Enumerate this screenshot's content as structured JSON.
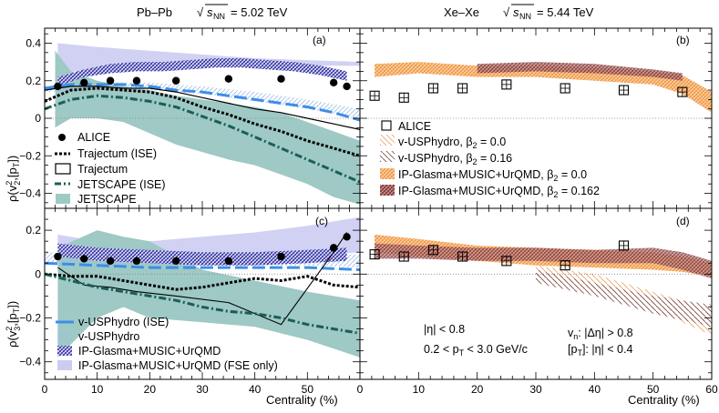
{
  "chart_data": {
    "type": "line",
    "header": {
      "left": {
        "system": "Pb–Pb",
        "energy_var": "s",
        "energy_sub": "NN",
        "energy_value": "= 5.02 TeV"
      },
      "right": {
        "system": "Xe–Xe",
        "energy_var": "s",
        "energy_sub": "NN",
        "energy_value": "= 5.44 TeV"
      }
    },
    "xlabel": "Centrality (%)",
    "xlim": [
      0,
      60
    ],
    "x_ticks": [
      "0",
      "10",
      "20",
      "30",
      "40",
      "50",
      "60"
    ],
    "x_ticks_last_panel": [
      "0",
      "10",
      "20",
      "30",
      "40",
      "50",
      "60"
    ],
    "ylabel_top": {
      "pre": "ρ(v",
      "sup": "2",
      "sub": "2",
      "mid": ",[p",
      "sub2": "T",
      "post": "])"
    },
    "ylabel_bottom": {
      "pre": "ρ(v",
      "sup": "2",
      "sub": "3",
      "mid": ",[p",
      "sub2": "T",
      "post": "])"
    },
    "ylim_top": [
      -0.48,
      0.48
    ],
    "ylim_bottom": [
      -0.48,
      0.3
    ],
    "y_ticks_top": [
      "−0.4",
      "−0.2",
      "0",
      "0.2",
      "0.4"
    ],
    "y_ticks_bottom": [
      "−0.4",
      "−0.2",
      "0",
      "0.2"
    ],
    "panel_labels": [
      "(a)",
      "(b)",
      "(c)",
      "(d)"
    ],
    "colors": {
      "alice": "#000000",
      "trajectum": "#000000",
      "jetscape_ise": "#1b5e57",
      "jetscape_band": "#9ec9c4",
      "vusp_ise": "#3d8ee8",
      "vusp_hatch": "#a9c7ee",
      "ipglasma_hatch": "#3333aa",
      "ipglasma_fse": "#ccccf2",
      "xe_beta0": "#f5a65b",
      "xe_beta016": "#a35b5b"
    },
    "panels": {
      "a": {
        "alice": {
          "x": [
            2.5,
            7.5,
            12.5,
            17.5,
            25,
            35,
            45,
            55,
            57.5
          ],
          "y": [
            0.17,
            0.19,
            0.2,
            0.2,
            0.2,
            0.21,
            0.21,
            0.19,
            0.17
          ]
        },
        "trajectum_ise": {
          "x": [
            0,
            5,
            10,
            15,
            20,
            25,
            30,
            35,
            40,
            45,
            50,
            55,
            60
          ],
          "y": [
            0.09,
            0.15,
            0.16,
            0.15,
            0.14,
            0.11,
            0.06,
            0.02,
            -0.03,
            -0.07,
            -0.12,
            -0.16,
            -0.2
          ]
        },
        "trajectum": {
          "x": [
            0,
            5,
            10,
            15,
            20,
            25,
            30,
            35,
            40,
            45,
            50,
            55,
            60
          ],
          "y": [
            0.15,
            0.17,
            0.17,
            0.16,
            0.16,
            0.14,
            0.11,
            0.08,
            0.05,
            0.03,
            0.0,
            -0.03,
            -0.06
          ]
        },
        "jetscape_ise": {
          "x": [
            0,
            5,
            10,
            15,
            20,
            25,
            30,
            35,
            40,
            45,
            50,
            55,
            60
          ],
          "y": [
            0.05,
            0.1,
            0.12,
            0.11,
            0.09,
            0.06,
            0.01,
            -0.04,
            -0.1,
            -0.16,
            -0.22,
            -0.28,
            -0.34
          ]
        },
        "jetscape_band": {
          "x": [
            2,
            5,
            10,
            15,
            20,
            25,
            30,
            35,
            40,
            45,
            50,
            55,
            60
          ],
          "hi": [
            0.36,
            0.25,
            0.2,
            0.17,
            0.15,
            0.12,
            0.1,
            0.08,
            0.06,
            0.03,
            -0.02,
            -0.07,
            -0.12
          ],
          "lo": [
            -0.05,
            0.0,
            0.0,
            -0.02,
            -0.08,
            -0.14,
            -0.18,
            -0.22,
            -0.25,
            -0.3,
            -0.35,
            -0.42,
            -0.46
          ]
        },
        "vusphydro_ise": {
          "x": [
            0,
            5,
            10,
            15,
            20,
            25,
            30,
            35,
            40,
            45,
            50,
            55,
            60
          ],
          "y": [
            0.16,
            0.18,
            0.18,
            0.18,
            0.17,
            0.15,
            0.14,
            0.12,
            0.1,
            0.08,
            0.06,
            0.03,
            -0.01
          ]
        },
        "vusphydro_band": {
          "x": [
            0,
            10,
            20,
            30,
            40,
            50,
            60
          ],
          "hi": [
            0.17,
            0.19,
            0.19,
            0.17,
            0.14,
            0.1,
            0.05
          ],
          "lo": [
            0.14,
            0.15,
            0.15,
            0.13,
            0.09,
            0.05,
            0.0
          ]
        },
        "ipglasma_band": {
          "x": [
            2.5,
            7.5,
            12.5,
            17.5,
            22.5,
            27.5,
            32.5,
            37.5,
            42.5,
            47.5,
            52.5,
            57.5
          ],
          "hi": [
            0.22,
            0.26,
            0.29,
            0.3,
            0.3,
            0.31,
            0.32,
            0.32,
            0.31,
            0.3,
            0.28,
            0.25
          ],
          "lo": [
            0.17,
            0.22,
            0.24,
            0.25,
            0.25,
            0.26,
            0.27,
            0.27,
            0.26,
            0.25,
            0.23,
            0.2
          ]
        },
        "ipglasma_fse": {
          "x": [
            2.5,
            10,
            20,
            30,
            40,
            50,
            60
          ],
          "hi": [
            0.4,
            0.38,
            0.36,
            0.34,
            0.32,
            0.31,
            0.3
          ],
          "lo": [
            0.24,
            0.26,
            0.27,
            0.28,
            0.28,
            0.28,
            0.28
          ]
        }
      },
      "b": {
        "alice": {
          "x": [
            2.5,
            7.5,
            12.5,
            17.5,
            25,
            35,
            45,
            55
          ],
          "y": [
            0.12,
            0.11,
            0.16,
            0.16,
            0.18,
            0.16,
            0.15,
            0.14
          ]
        },
        "beta0_band": {
          "x": [
            2.5,
            10,
            20,
            30,
            40,
            50,
            55,
            60
          ],
          "hi": [
            0.29,
            0.3,
            0.28,
            0.28,
            0.27,
            0.25,
            0.23,
            0.14
          ],
          "lo": [
            0.22,
            0.24,
            0.22,
            0.22,
            0.2,
            0.18,
            0.13,
            0.03
          ]
        },
        "beta016_band": {
          "x": [
            20,
            30,
            40,
            50,
            55
          ],
          "hi": [
            0.29,
            0.3,
            0.29,
            0.26,
            0.24
          ],
          "lo": [
            0.24,
            0.25,
            0.24,
            0.22,
            0.2
          ]
        }
      },
      "c": {
        "alice": {
          "x": [
            2.5,
            7.5,
            12.5,
            17.5,
            25,
            35,
            45,
            55,
            57.5
          ],
          "y": [
            0.08,
            0.07,
            0.06,
            0.06,
            0.06,
            0.06,
            0.08,
            0.12,
            0.17
          ]
        },
        "trajectum_ise": {
          "x": [
            0,
            5,
            10,
            15,
            20,
            25,
            30,
            35,
            40,
            45,
            50,
            55,
            60
          ],
          "y": [
            0.0,
            -0.01,
            -0.01,
            -0.03,
            -0.05,
            -0.07,
            -0.06,
            -0.04,
            -0.02,
            -0.03,
            -0.01,
            -0.05,
            -0.06
          ]
        },
        "trajectum": {
          "x": [
            2.5,
            7.5,
            12.5,
            17.5,
            25,
            35,
            45,
            55,
            57.5
          ],
          "y": [
            0.03,
            -0.05,
            -0.06,
            -0.08,
            -0.1,
            -0.13,
            -0.23,
            0.1,
            0.19
          ]
        },
        "jetscape_ise": {
          "x": [
            0,
            5,
            10,
            15,
            20,
            25,
            30,
            35,
            40,
            45,
            50,
            55,
            60
          ],
          "y": [
            0.0,
            -0.03,
            -0.06,
            -0.08,
            -0.1,
            -0.12,
            -0.15,
            -0.17,
            -0.18,
            -0.2,
            -0.23,
            -0.25,
            -0.27
          ]
        },
        "jetscape_band": {
          "x": [
            2.5,
            10,
            15,
            20,
            30,
            40,
            50,
            60
          ],
          "hi": [
            0.12,
            0.2,
            0.17,
            0.15,
            0.02,
            -0.03,
            -0.08,
            -0.12
          ],
          "lo": [
            -0.38,
            -0.2,
            -0.15,
            -0.2,
            -0.22,
            -0.24,
            -0.3,
            -0.38
          ]
        },
        "vusphydro_ise": {
          "x": [
            0,
            10,
            20,
            30,
            40,
            50,
            60
          ],
          "y": [
            0.05,
            0.04,
            0.03,
            0.03,
            0.03,
            0.03,
            0.02
          ]
        },
        "vusphydro_band": {
          "x": [
            0,
            10,
            20,
            30,
            40,
            50,
            60
          ],
          "hi": [
            0.1,
            0.09,
            0.09,
            0.09,
            0.09,
            0.09,
            0.09
          ],
          "lo": [
            0.05,
            0.04,
            0.04,
            0.04,
            0.04,
            0.04,
            0.03
          ]
        },
        "ipglasma_band": {
          "x": [
            2.5,
            10,
            20,
            30,
            40,
            50,
            57.5
          ],
          "hi": [
            0.14,
            0.12,
            0.11,
            0.1,
            0.1,
            0.11,
            0.12
          ],
          "lo": [
            0.08,
            0.06,
            0.05,
            0.04,
            0.04,
            0.05,
            0.06
          ]
        },
        "ipglasma_fse": {
          "x": [
            2.5,
            10,
            20,
            30,
            40,
            50,
            60
          ],
          "hi": [
            0.18,
            0.15,
            0.15,
            0.17,
            0.19,
            0.22,
            0.26
          ],
          "lo": [
            0.1,
            0.08,
            0.06,
            0.06,
            0.07,
            0.08,
            0.1
          ]
        }
      },
      "d": {
        "alice": {
          "x": [
            2.5,
            7.5,
            12.5,
            17.5,
            25,
            35,
            45
          ],
          "y": [
            0.09,
            0.08,
            0.11,
            0.08,
            0.06,
            0.04,
            0.13
          ]
        },
        "beta0_band": {
          "x": [
            2.5,
            10,
            20,
            30,
            40,
            50,
            55,
            60
          ],
          "hi": [
            0.18,
            0.16,
            0.13,
            0.12,
            0.11,
            0.1,
            0.08,
            0.05
          ],
          "lo": [
            0.1,
            0.08,
            0.06,
            0.04,
            0.03,
            0.02,
            0.01,
            -0.01
          ]
        },
        "beta016_band": {
          "x": [
            2.5,
            10,
            20,
            30,
            40,
            50,
            55,
            60
          ],
          "hi": [
            0.14,
            0.13,
            0.12,
            0.12,
            0.11,
            0.12,
            0.1,
            0.06
          ],
          "lo": [
            0.07,
            0.07,
            0.06,
            0.06,
            0.05,
            0.05,
            0.02,
            -0.02
          ]
        },
        "beta0_hatch_tail": {
          "x": [
            30,
            40,
            50,
            60
          ],
          "hi": [
            0.04,
            0.0,
            -0.08,
            -0.16
          ],
          "lo": [
            -0.02,
            -0.08,
            -0.16,
            -0.28
          ]
        },
        "beta016_hatch_tail": {
          "x": [
            30,
            40,
            50,
            60
          ],
          "hi": [
            0.02,
            -0.04,
            -0.1,
            -0.14
          ],
          "lo": [
            -0.04,
            -0.1,
            -0.18,
            -0.24
          ]
        }
      }
    }
  },
  "legends": {
    "a": [
      "ALICE",
      "Trajectum (ISE)",
      "Trajectum",
      "JETSCAPE (ISE)",
      "JETSCAPE"
    ],
    "b": [
      {
        "text": "ALICE"
      },
      {
        "text": "v-USPhydro, β",
        "sub": "2",
        "tail": " = 0.0"
      },
      {
        "text": "v-USPhydro, β",
        "sub": "2",
        "tail": " = 0.16"
      },
      {
        "text": "IP-Glasma+MUSIC+UrQMD, β",
        "sub": "2",
        "tail": " = 0.0"
      },
      {
        "text": "IP-Glasma+MUSIC+UrQMD, β",
        "sub": "2",
        "tail": " = 0.162"
      }
    ],
    "c": [
      "v-USPhydro (ISE)",
      "v-USPhydro",
      "IP-Glasma+MUSIC+UrQMD",
      "IP-Glasma+MUSIC+UrQMD (FSE only)"
    ]
  },
  "kinematics": {
    "eta_cut": "|η| < 0.8",
    "pt_range": {
      "pre": "0.2 < p",
      "sub": "T",
      "post": " < 3.0 GeV/c"
    },
    "vn_gap": {
      "pre": "v",
      "sub": "n",
      "post": ": |Δη| > 0.8"
    },
    "pt_cut": {
      "pre": "[p",
      "sub": "T",
      "post": "]: |η| < 0.4"
    }
  }
}
